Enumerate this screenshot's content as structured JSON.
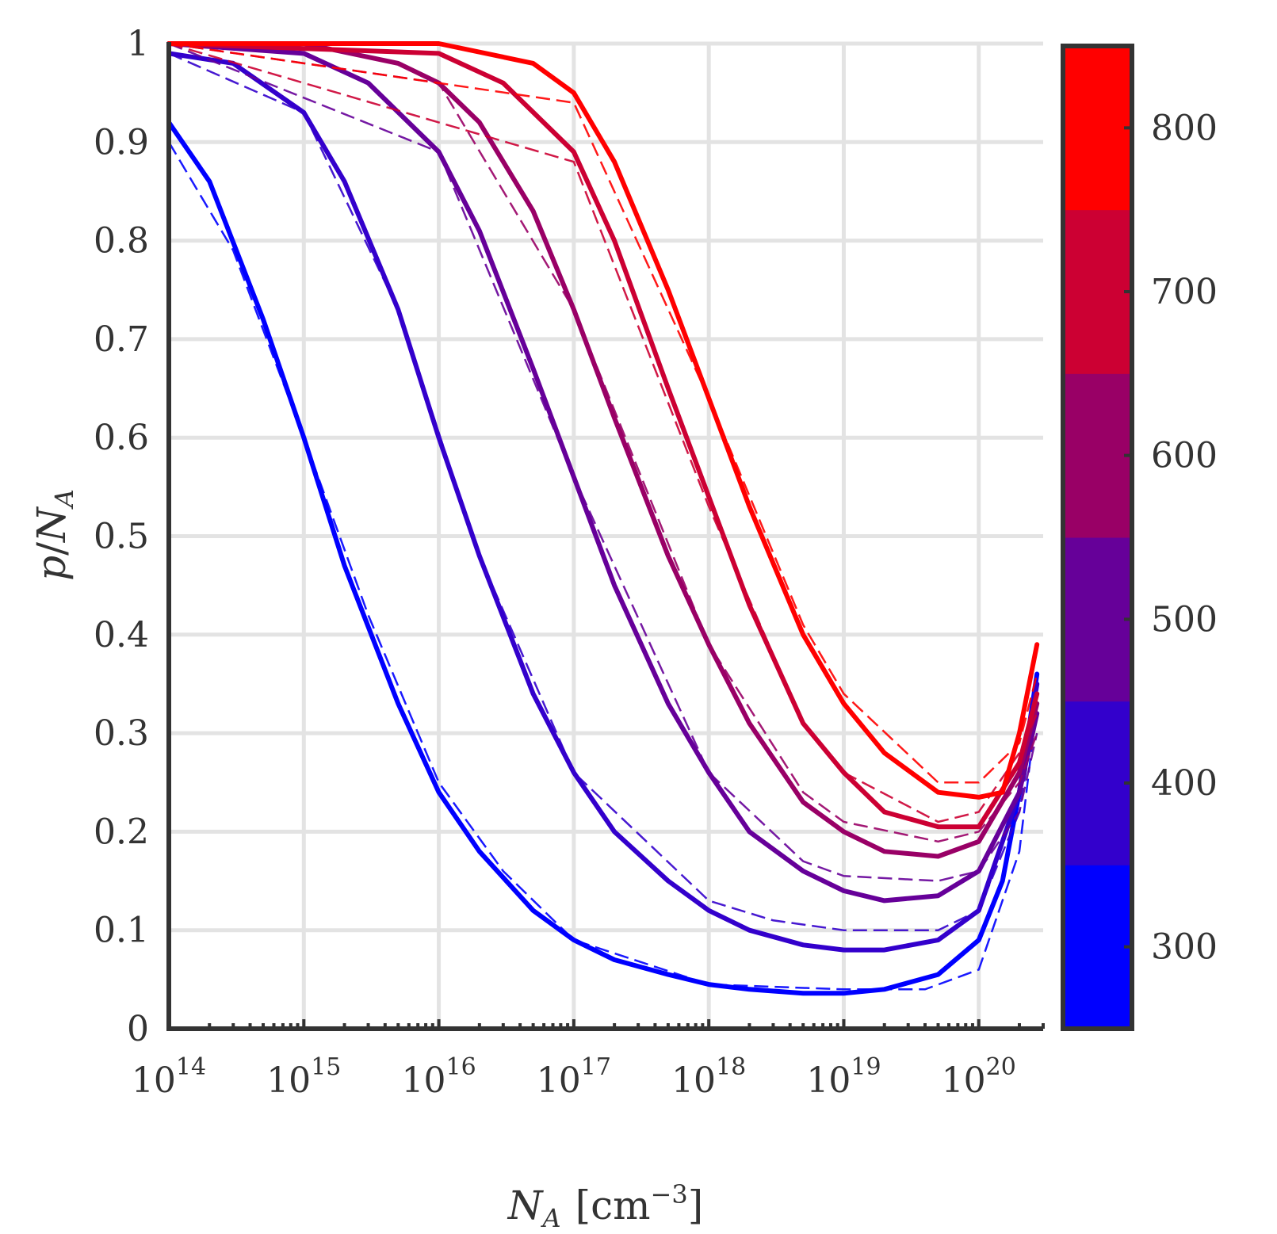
{
  "chart_data": {
    "type": "line",
    "xlabel": {
      "var": "N",
      "sub": "A",
      "unit": "[cm",
      "unit_exp": "−3",
      "unit_close": "]"
    },
    "ylabel": {
      "var_p": "p",
      "slash": "/",
      "var_n": "N",
      "sub": "A"
    },
    "x_scale": "log",
    "xlim": [
      100000000000000.0,
      3e+20
    ],
    "ylim": [
      0,
      1
    ],
    "grid": true,
    "x_ticks": [
      {
        "value": 100000000000000.0,
        "base": "10",
        "exp": "14"
      },
      {
        "value": 1000000000000000.0,
        "base": "10",
        "exp": "15"
      },
      {
        "value": 1e+16,
        "base": "10",
        "exp": "16"
      },
      {
        "value": 1e+17,
        "base": "10",
        "exp": "17"
      },
      {
        "value": 1e+18,
        "base": "10",
        "exp": "18"
      },
      {
        "value": 1e+19,
        "base": "10",
        "exp": "19"
      },
      {
        "value": 1e+20,
        "base": "10",
        "exp": "20"
      }
    ],
    "y_ticks": [
      {
        "value": 0,
        "label": "0"
      },
      {
        "value": 0.1,
        "label": "0.1"
      },
      {
        "value": 0.2,
        "label": "0.2"
      },
      {
        "value": 0.3,
        "label": "0.3"
      },
      {
        "value": 0.4,
        "label": "0.4"
      },
      {
        "value": 0.5,
        "label": "0.5"
      },
      {
        "value": 0.6,
        "label": "0.6"
      },
      {
        "value": 0.7,
        "label": "0.7"
      },
      {
        "value": 0.8,
        "label": "0.8"
      },
      {
        "value": 0.9,
        "label": "0.9"
      },
      {
        "value": 1,
        "label": "1"
      }
    ],
    "colorbar": {
      "range": [
        250,
        850
      ],
      "ticks": [
        {
          "value": 300,
          "label": "300"
        },
        {
          "value": 400,
          "label": "400"
        },
        {
          "value": 500,
          "label": "500"
        },
        {
          "value": 600,
          "label": "600"
        },
        {
          "value": 700,
          "label": "700"
        },
        {
          "value": 800,
          "label": "800"
        }
      ],
      "bands": [
        {
          "from": 250,
          "to": 350,
          "color": "#0000ff"
        },
        {
          "from": 350,
          "to": 450,
          "color": "#3300cc"
        },
        {
          "from": 450,
          "to": 550,
          "color": "#660099"
        },
        {
          "from": 550,
          "to": 650,
          "color": "#990066"
        },
        {
          "from": 650,
          "to": 750,
          "color": "#cc0033"
        },
        {
          "from": 750,
          "to": 850,
          "color": "#ff0000"
        }
      ]
    },
    "series": [
      {
        "temperature": 300,
        "color": "#0000ff",
        "solid": [
          [
            100000000000000.0,
            0.92
          ],
          [
            200000000000000.0,
            0.86
          ],
          [
            500000000000000.0,
            0.72
          ],
          [
            1000000000000000.0,
            0.6
          ],
          [
            2000000000000000.0,
            0.47
          ],
          [
            5000000000000000.0,
            0.33
          ],
          [
            1e+16,
            0.24
          ],
          [
            2e+16,
            0.18
          ],
          [
            5e+16,
            0.12
          ],
          [
            1e+17,
            0.09
          ],
          [
            2e+17,
            0.07
          ],
          [
            5e+17,
            0.055
          ],
          [
            1e+18,
            0.045
          ],
          [
            2e+18,
            0.04
          ],
          [
            5e+18,
            0.036
          ],
          [
            1e+19,
            0.036
          ],
          [
            2e+19,
            0.04
          ],
          [
            5e+19,
            0.055
          ],
          [
            1e+20,
            0.09
          ],
          [
            1.5e+20,
            0.15
          ],
          [
            2e+20,
            0.24
          ],
          [
            2.7e+20,
            0.36
          ]
        ],
        "dashed": [
          [
            100000000000000.0,
            0.9
          ],
          [
            300000000000000.0,
            0.79
          ],
          [
            1000000000000000.0,
            0.6
          ],
          [
            3000000000000000.0,
            0.42
          ],
          [
            1e+16,
            0.25
          ],
          [
            3e+16,
            0.16
          ],
          [
            1e+17,
            0.09
          ],
          [
            1e+18,
            0.045
          ],
          [
            1e+19,
            0.04
          ],
          [
            4e+19,
            0.04
          ],
          [
            1e+20,
            0.06
          ],
          [
            2e+20,
            0.18
          ],
          [
            2.7e+20,
            0.33
          ]
        ]
      },
      {
        "temperature": 400,
        "color": "#3300cc",
        "solid": [
          [
            100000000000000.0,
            0.99
          ],
          [
            300000000000000.0,
            0.98
          ],
          [
            1000000000000000.0,
            0.93
          ],
          [
            2000000000000000.0,
            0.86
          ],
          [
            5000000000000000.0,
            0.73
          ],
          [
            1e+16,
            0.6
          ],
          [
            2e+16,
            0.48
          ],
          [
            5e+16,
            0.34
          ],
          [
            1e+17,
            0.26
          ],
          [
            2e+17,
            0.2
          ],
          [
            5e+17,
            0.15
          ],
          [
            1e+18,
            0.12
          ],
          [
            2e+18,
            0.1
          ],
          [
            5e+18,
            0.085
          ],
          [
            1e+19,
            0.08
          ],
          [
            2e+19,
            0.08
          ],
          [
            5e+19,
            0.09
          ],
          [
            1e+20,
            0.12
          ],
          [
            2e+20,
            0.24
          ],
          [
            2.7e+20,
            0.35
          ]
        ],
        "dashed": [
          [
            100000000000000.0,
            0.99
          ],
          [
            1000000000000000.0,
            0.93
          ],
          [
            5000000000000000.0,
            0.73
          ],
          [
            2e+16,
            0.48
          ],
          [
            1e+17,
            0.26
          ],
          [
            1e+18,
            0.13
          ],
          [
            3e+18,
            0.11
          ],
          [
            1e+19,
            0.1
          ],
          [
            5e+19,
            0.1
          ],
          [
            1e+20,
            0.12
          ],
          [
            2e+20,
            0.22
          ],
          [
            2.7e+20,
            0.33
          ]
        ]
      },
      {
        "temperature": 500,
        "color": "#660099",
        "solid": [
          [
            100000000000000.0,
            1
          ],
          [
            1000000000000000.0,
            0.99
          ],
          [
            3000000000000000.0,
            0.96
          ],
          [
            1e+16,
            0.89
          ],
          [
            2e+16,
            0.81
          ],
          [
            5e+16,
            0.67
          ],
          [
            1e+17,
            0.56
          ],
          [
            2e+17,
            0.45
          ],
          [
            5e+17,
            0.33
          ],
          [
            1e+18,
            0.26
          ],
          [
            2e+18,
            0.2
          ],
          [
            5e+18,
            0.16
          ],
          [
            1e+19,
            0.14
          ],
          [
            2e+19,
            0.13
          ],
          [
            5e+19,
            0.135
          ],
          [
            1e+20,
            0.16
          ],
          [
            2e+20,
            0.24
          ],
          [
            2.7e+20,
            0.32
          ]
        ],
        "dashed": [
          [
            100000000000000.0,
            1
          ],
          [
            1e+16,
            0.89
          ],
          [
            1e+17,
            0.56
          ],
          [
            1e+18,
            0.26
          ],
          [
            5e+18,
            0.17
          ],
          [
            1e+19,
            0.155
          ],
          [
            5e+19,
            0.15
          ],
          [
            1e+20,
            0.16
          ],
          [
            2e+20,
            0.22
          ],
          [
            2.7e+20,
            0.3
          ]
        ]
      },
      {
        "temperature": 600,
        "color": "#990066",
        "solid": [
          [
            100000000000000.0,
            1
          ],
          [
            1000000000000000.0,
            1
          ],
          [
            5000000000000000.0,
            0.98
          ],
          [
            1e+16,
            0.96
          ],
          [
            2e+16,
            0.92
          ],
          [
            5e+16,
            0.83
          ],
          [
            1e+17,
            0.73
          ],
          [
            2e+17,
            0.62
          ],
          [
            5e+17,
            0.48
          ],
          [
            1e+18,
            0.39
          ],
          [
            2e+18,
            0.31
          ],
          [
            5e+18,
            0.23
          ],
          [
            1e+19,
            0.2
          ],
          [
            2e+19,
            0.18
          ],
          [
            5e+19,
            0.175
          ],
          [
            1e+20,
            0.19
          ],
          [
            2e+20,
            0.26
          ],
          [
            2.7e+20,
            0.33
          ]
        ],
        "dashed": [
          [
            100000000000000.0,
            1
          ],
          [
            1e+16,
            0.96
          ],
          [
            1e+17,
            0.73
          ],
          [
            1e+18,
            0.39
          ],
          [
            5e+18,
            0.24
          ],
          [
            1e+19,
            0.21
          ],
          [
            5e+19,
            0.19
          ],
          [
            1e+20,
            0.2
          ],
          [
            2e+20,
            0.25
          ],
          [
            2.7e+20,
            0.3
          ]
        ]
      },
      {
        "temperature": 700,
        "color": "#cc0033",
        "solid": [
          [
            100000000000000.0,
            1
          ],
          [
            1e+16,
            0.99
          ],
          [
            3e+16,
            0.96
          ],
          [
            1e+17,
            0.89
          ],
          [
            2e+17,
            0.8
          ],
          [
            5e+17,
            0.65
          ],
          [
            1e+18,
            0.54
          ],
          [
            2e+18,
            0.43
          ],
          [
            5e+18,
            0.31
          ],
          [
            1e+19,
            0.26
          ],
          [
            2e+19,
            0.22
          ],
          [
            5e+19,
            0.205
          ],
          [
            1e+20,
            0.205
          ],
          [
            2e+20,
            0.27
          ],
          [
            2.7e+20,
            0.34
          ]
        ],
        "dashed": [
          [
            100000000000000.0,
            1
          ],
          [
            1e+17,
            0.88
          ],
          [
            1e+18,
            0.53
          ],
          [
            5e+18,
            0.31
          ],
          [
            1e+19,
            0.26
          ],
          [
            5e+19,
            0.21
          ],
          [
            1e+20,
            0.22
          ],
          [
            2e+20,
            0.28
          ],
          [
            2.7e+20,
            0.32
          ]
        ]
      },
      {
        "temperature": 800,
        "color": "#ff0000",
        "solid": [
          [
            100000000000000.0,
            1
          ],
          [
            1e+16,
            1
          ],
          [
            5e+16,
            0.98
          ],
          [
            1e+17,
            0.95
          ],
          [
            2e+17,
            0.88
          ],
          [
            5e+17,
            0.75
          ],
          [
            1e+18,
            0.64
          ],
          [
            2e+18,
            0.53
          ],
          [
            5e+18,
            0.4
          ],
          [
            1e+19,
            0.33
          ],
          [
            2e+19,
            0.28
          ],
          [
            5e+19,
            0.24
          ],
          [
            1e+20,
            0.235
          ],
          [
            1.5e+20,
            0.24
          ],
          [
            2e+20,
            0.3
          ],
          [
            2.7e+20,
            0.39
          ]
        ],
        "dashed": [
          [
            100000000000000.0,
            1
          ],
          [
            1e+17,
            0.94
          ],
          [
            1e+18,
            0.64
          ],
          [
            5e+18,
            0.41
          ],
          [
            1e+19,
            0.34
          ],
          [
            5e+19,
            0.25
          ],
          [
            1e+20,
            0.25
          ],
          [
            2e+20,
            0.29
          ],
          [
            2.7e+20,
            0.36
          ]
        ]
      }
    ]
  }
}
